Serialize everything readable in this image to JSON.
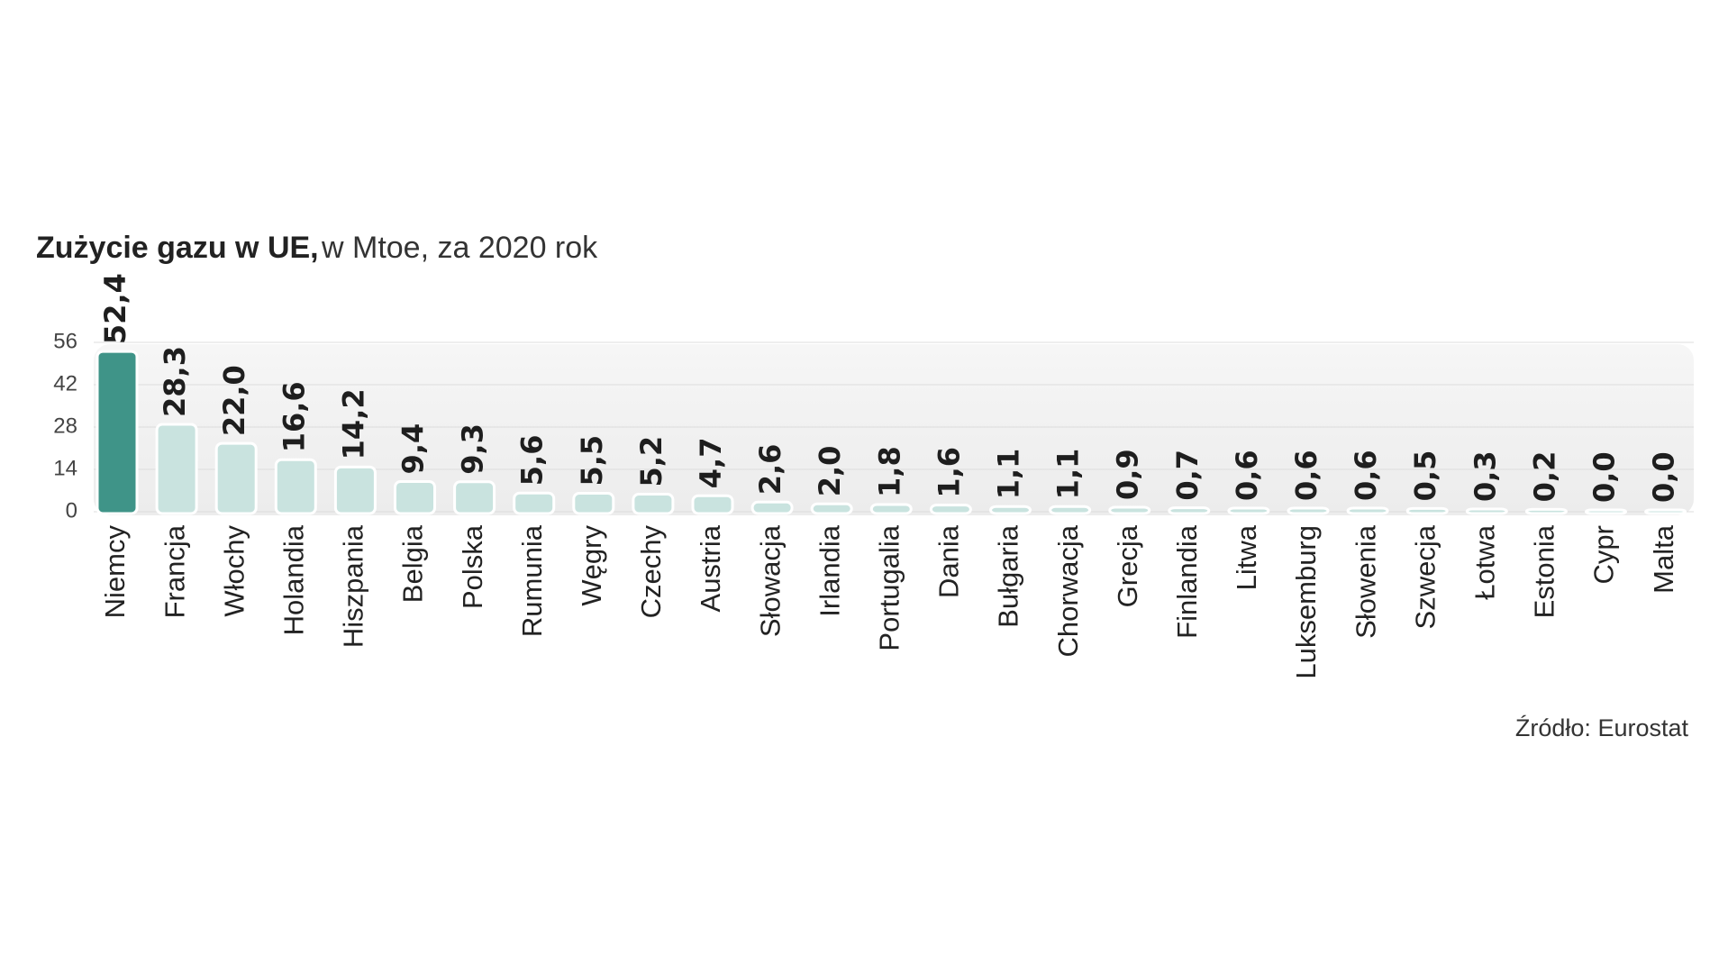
{
  "chart_data": {
    "type": "bar",
    "title": "Zużycie gazu w UE,",
    "subtitle": "w Mtoe, za 2020 rok",
    "source": "Źródło: Eurostat",
    "categories": [
      "Niemcy",
      "Francja",
      "Włochy",
      "Holandia",
      "Hiszpania",
      "Belgia",
      "Polska",
      "Rumunia",
      "Węgry",
      "Czechy",
      "Austria",
      "Słowacja",
      "Irlandia",
      "Portugalia",
      "Dania",
      "Bułgaria",
      "Chorwacja",
      "Grecja",
      "Finlandia",
      "Litwa",
      "Luksemburg",
      "Słowenia",
      "Szwecja",
      "Łotwa",
      "Estonia",
      "Cypr",
      "Malta"
    ],
    "values": [
      52.4,
      28.3,
      22.0,
      16.6,
      14.2,
      9.4,
      9.3,
      5.6,
      5.5,
      5.2,
      4.7,
      2.6,
      2.0,
      1.8,
      1.6,
      1.1,
      1.1,
      0.9,
      0.7,
      0.6,
      0.6,
      0.6,
      0.5,
      0.3,
      0.2,
      0.0,
      0.0
    ],
    "value_labels": [
      "52,4",
      "28,3",
      "22,0",
      "16,6",
      "14,2",
      "9,4",
      "9,3",
      "5,6",
      "5,5",
      "5,2",
      "4,7",
      "2,6",
      "2,0",
      "1,8",
      "1,6",
      "1,1",
      "1,1",
      "0,9",
      "0,7",
      "0,6",
      "0,6",
      "0,6",
      "0,5",
      "0,3",
      "0,2",
      "0,0",
      "0,0"
    ],
    "colors": [
      "#3f9488",
      "#c9e3df",
      "#c9e3df",
      "#c9e3df",
      "#c9e3df",
      "#c9e3df",
      "#c9e3df",
      "#c9e3df",
      "#c9e3df",
      "#c9e3df",
      "#c9e3df",
      "#c9e3df",
      "#c9e3df",
      "#c9e3df",
      "#c9e3df",
      "#c9e3df",
      "#c9e3df",
      "#c9e3df",
      "#c9e3df",
      "#c9e3df",
      "#c9e3df",
      "#c9e3df",
      "#c9e3df",
      "#c9e3df",
      "#c9e3df",
      "#c9e3df",
      "#c9e3df"
    ],
    "ylim": [
      0,
      56
    ],
    "yticks": [
      0,
      14,
      28,
      42,
      56
    ],
    "grid": true
  }
}
